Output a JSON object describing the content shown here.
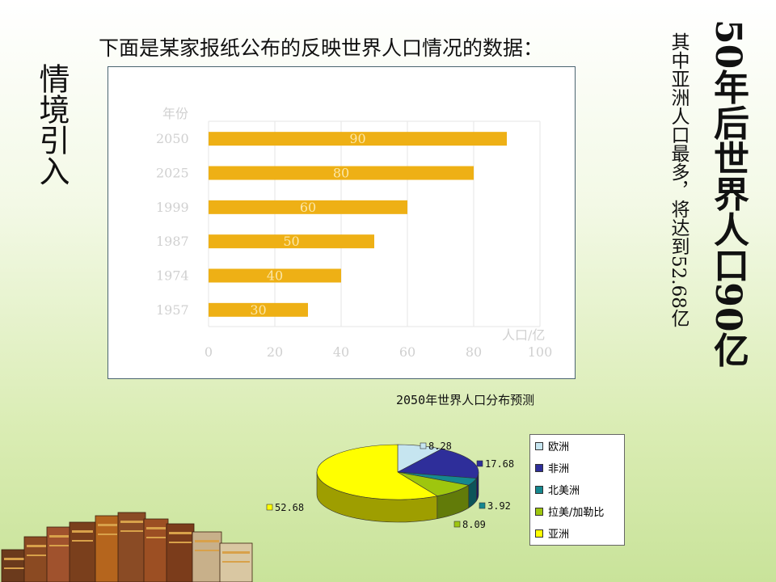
{
  "slide": {
    "side_title": "情境引入",
    "headline": "下面是某家报纸公布的反映世界人口情况的数据：",
    "note_small": "其中亚洲人口最多，将达到52.68亿",
    "note_big": "50年后世界人口90亿"
  },
  "chart_data": [
    {
      "type": "bar",
      "orientation": "horizontal",
      "ylabel": "年份",
      "xlabel": "人口/亿",
      "categories": [
        "2050",
        "2025",
        "1999",
        "1987",
        "1974",
        "1957"
      ],
      "values": [
        90,
        80,
        60,
        50,
        40,
        30
      ],
      "xlim": [
        0,
        100
      ],
      "xticks": [
        0,
        20,
        40,
        60,
        80,
        100
      ],
      "grid": true,
      "bar_color": "#eeb015",
      "data_labels": true
    },
    {
      "type": "pie",
      "style": "3d",
      "title": "2050年世界人口分布预测",
      "slices": [
        {
          "label": "欧洲",
          "value": 8.28,
          "color": "#c6e5f0"
        },
        {
          "label": "非洲",
          "value": 17.68,
          "color": "#2e2e9a"
        },
        {
          "label": "北美洲",
          "value": 3.92,
          "color": "#15878f"
        },
        {
          "label": "拉美/加勒比",
          "value": 8.09,
          "color": "#9ec60e"
        },
        {
          "label": "亚洲",
          "value": 52.68,
          "color": "#ffff00"
        }
      ],
      "legend_position": "right"
    }
  ]
}
